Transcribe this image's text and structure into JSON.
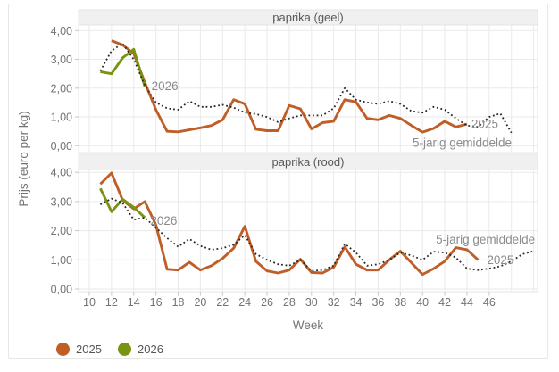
{
  "figure": {
    "x_axis_title": "Week",
    "y_axis_title": "Prijs (euro per kg)",
    "y_tick_labels": [
      "0,00",
      "1,00",
      "2,00",
      "3,00",
      "4,00"
    ],
    "x_tick_labels": [
      "10",
      "12",
      "14",
      "16",
      "18",
      "20",
      "22",
      "24",
      "26",
      "28",
      "30",
      "32",
      "34",
      "36",
      "38",
      "40",
      "42",
      "44",
      "46"
    ],
    "legend": {
      "items": [
        {
          "label": "2025",
          "color": "#c05e28"
        },
        {
          "label": "2026",
          "color": "#789413"
        }
      ]
    },
    "colors": {
      "series_2025": "#c05e28",
      "series_2026": "#789413",
      "series_average": "#262626",
      "grid": "#eaeaea",
      "panel_border": "#e4e4e4",
      "strip_background": "#f0f0f0",
      "axis_text": "#737373",
      "annotation_text": "#8b8b8b"
    }
  },
  "chart_data": [
    {
      "type": "line",
      "title": "paprika (geel)",
      "xlabel": "Week",
      "ylabel": "Prijs (euro per kg)",
      "xlim": [
        9,
        50.4
      ],
      "ylim": [
        0,
        4
      ],
      "x_ticks": [
        10,
        12,
        14,
        16,
        18,
        20,
        22,
        24,
        26,
        28,
        30,
        32,
        34,
        36,
        38,
        40,
        42,
        44,
        46
      ],
      "y_ticks": [
        0,
        1,
        2,
        3,
        4
      ],
      "grid": true,
      "series": [
        {
          "name": "2025",
          "color": "#c05e28",
          "style": "solid",
          "x": [
            12,
            13,
            14,
            15,
            16,
            17,
            18,
            19,
            20,
            21,
            22,
            23,
            24,
            25,
            26,
            27,
            28,
            29,
            30,
            31,
            32,
            33,
            34,
            35,
            36,
            37,
            38,
            39,
            40,
            41,
            42,
            43,
            44
          ],
          "values": [
            3.65,
            3.5,
            3.2,
            2.2,
            1.25,
            0.5,
            0.48,
            0.55,
            0.62,
            0.7,
            0.9,
            1.6,
            1.45,
            0.57,
            0.52,
            0.52,
            1.4,
            1.28,
            0.58,
            0.8,
            0.85,
            1.6,
            1.52,
            0.95,
            0.9,
            1.05,
            0.95,
            0.7,
            0.47,
            0.6,
            0.85,
            0.65,
            0.75
          ]
        },
        {
          "name": "2026",
          "color": "#789413",
          "style": "solid",
          "x": [
            11,
            12,
            13,
            14,
            15
          ],
          "values": [
            2.57,
            2.5,
            3.05,
            3.35,
            2.05
          ]
        },
        {
          "name": "5-jarig gemiddelde",
          "color": "#262626",
          "style": "dotted",
          "x": [
            11,
            12,
            13,
            14,
            15,
            16,
            17,
            18,
            19,
            20,
            21,
            22,
            23,
            24,
            25,
            26,
            27,
            28,
            29,
            30,
            31,
            32,
            33,
            34,
            35,
            36,
            37,
            38,
            39,
            40,
            41,
            42,
            43,
            44,
            45,
            46,
            47,
            48
          ],
          "values": [
            2.6,
            3.3,
            3.55,
            3.0,
            2.1,
            1.5,
            1.3,
            1.25,
            1.55,
            1.35,
            1.35,
            1.42,
            1.32,
            1.15,
            1.1,
            1.0,
            0.82,
            0.95,
            1.05,
            1.05,
            1.05,
            1.3,
            2.0,
            1.6,
            1.5,
            1.45,
            1.55,
            1.45,
            1.2,
            1.15,
            1.35,
            1.25,
            0.95,
            0.7,
            0.65,
            1.0,
            1.12,
            0.45
          ]
        }
      ],
      "annotations": [
        {
          "text": "2026",
          "week": 15.6,
          "value": 1.93
        },
        {
          "text": "2025",
          "week": 44.4,
          "value": 0.62
        },
        {
          "text": "5-jarig gemiddelde",
          "week": 39.1,
          "value": -0.03
        }
      ]
    },
    {
      "type": "line",
      "title": "paprika (rood)",
      "xlabel": "Week",
      "ylabel": "Prijs (euro per kg)",
      "xlim": [
        9,
        50.4
      ],
      "ylim": [
        0,
        4
      ],
      "x_ticks": [
        10,
        12,
        14,
        16,
        18,
        20,
        22,
        24,
        26,
        28,
        30,
        32,
        34,
        36,
        38,
        40,
        42,
        44,
        46
      ],
      "y_ticks": [
        0,
        1,
        2,
        3,
        4
      ],
      "grid": true,
      "series": [
        {
          "name": "2025",
          "color": "#c05e28",
          "style": "solid",
          "x": [
            11,
            12,
            13,
            14,
            15,
            16,
            17,
            18,
            19,
            20,
            21,
            22,
            23,
            24,
            25,
            26,
            27,
            28,
            29,
            30,
            31,
            32,
            33,
            34,
            35,
            36,
            37,
            38,
            39,
            40,
            41,
            42,
            43,
            44,
            45
          ],
          "values": [
            3.6,
            3.98,
            3.05,
            2.75,
            3.0,
            2.2,
            0.68,
            0.65,
            0.92,
            0.65,
            0.8,
            1.05,
            1.4,
            2.15,
            0.95,
            0.62,
            0.55,
            0.65,
            1.02,
            0.57,
            0.55,
            0.75,
            1.45,
            0.85,
            0.65,
            0.65,
            1.0,
            1.3,
            0.9,
            0.5,
            0.7,
            0.95,
            1.42,
            1.35,
            1.0
          ]
        },
        {
          "name": "2026",
          "color": "#789413",
          "style": "solid",
          "x": [
            11,
            12,
            13,
            14,
            15
          ],
          "values": [
            3.45,
            2.65,
            3.08,
            2.8,
            2.45
          ]
        },
        {
          "name": "5-jarig gemiddelde",
          "color": "#262626",
          "style": "dotted",
          "x": [
            11,
            12,
            13,
            14,
            15,
            16,
            17,
            18,
            19,
            20,
            21,
            22,
            23,
            24,
            25,
            26,
            27,
            28,
            29,
            30,
            31,
            32,
            33,
            34,
            35,
            36,
            37,
            38,
            39,
            40,
            41,
            42,
            43,
            44,
            45,
            46,
            47,
            48,
            49,
            50
          ],
          "values": [
            2.9,
            3.1,
            2.95,
            2.38,
            2.45,
            2.1,
            1.75,
            1.45,
            1.72,
            1.48,
            1.35,
            1.4,
            1.52,
            1.85,
            1.2,
            1.0,
            0.85,
            0.8,
            1.0,
            0.62,
            0.65,
            0.8,
            1.55,
            1.25,
            0.8,
            0.85,
            1.0,
            1.25,
            1.15,
            1.0,
            1.28,
            1.25,
            1.08,
            0.7,
            0.65,
            0.7,
            0.78,
            0.95,
            1.2,
            1.3
          ]
        }
      ],
      "annotations": [
        {
          "text": "2026",
          "week": 15.5,
          "value": 2.2
        },
        {
          "text": "5-jarig gemiddelde",
          "week": 41.2,
          "value": 1.56
        },
        {
          "text": "2025",
          "week": 45.8,
          "value": 0.86
        }
      ]
    }
  ]
}
